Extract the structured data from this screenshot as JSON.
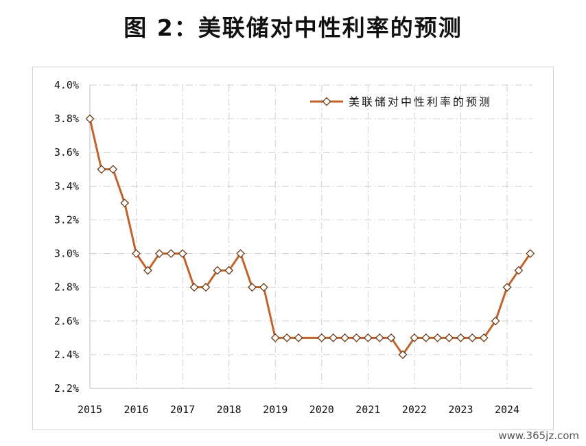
{
  "title": "图 2：美联储对中性利率的预测",
  "watermark": "www.365jz.com",
  "chart_data": {
    "type": "line",
    "title": "图 2：美联储对中性利率的预测",
    "xlabel": "",
    "ylabel": "",
    "ylim": [
      2.2,
      4.0
    ],
    "xlim": [
      2015,
      2024.6
    ],
    "y_ticks": [
      "2.2%",
      "2.4%",
      "2.6%",
      "2.8%",
      "3.0%",
      "3.2%",
      "3.4%",
      "3.6%",
      "3.8%",
      "4.0%"
    ],
    "x_ticks": [
      "2015",
      "2016",
      "2017",
      "2018",
      "2019",
      "2020",
      "2021",
      "2022",
      "2023",
      "2024"
    ],
    "grid": true,
    "legend_position": "top-right",
    "series": [
      {
        "name": "美联储对中性利率的预测",
        "color": "#c0622a",
        "marker": "diamond",
        "x": [
          2015.0,
          2015.25,
          2015.5,
          2015.75,
          2016.0,
          2016.25,
          2016.5,
          2016.75,
          2017.0,
          2017.25,
          2017.5,
          2017.75,
          2018.0,
          2018.25,
          2018.5,
          2018.75,
          2019.0,
          2019.25,
          2019.5,
          2020.0,
          2020.25,
          2020.5,
          2020.75,
          2021.0,
          2021.25,
          2021.5,
          2021.75,
          2022.0,
          2022.25,
          2022.5,
          2022.75,
          2023.0,
          2023.25,
          2023.5,
          2023.75,
          2024.0,
          2024.25,
          2024.5
        ],
        "y": [
          3.8,
          3.5,
          3.5,
          3.3,
          3.0,
          2.9,
          3.0,
          3.0,
          3.0,
          2.8,
          2.8,
          2.9,
          2.9,
          3.0,
          2.8,
          2.8,
          2.5,
          2.5,
          2.5,
          2.5,
          2.5,
          2.5,
          2.5,
          2.5,
          2.5,
          2.5,
          2.4,
          2.5,
          2.5,
          2.5,
          2.5,
          2.5,
          2.5,
          2.5,
          2.6,
          2.8,
          2.9,
          3.0
        ]
      }
    ]
  }
}
